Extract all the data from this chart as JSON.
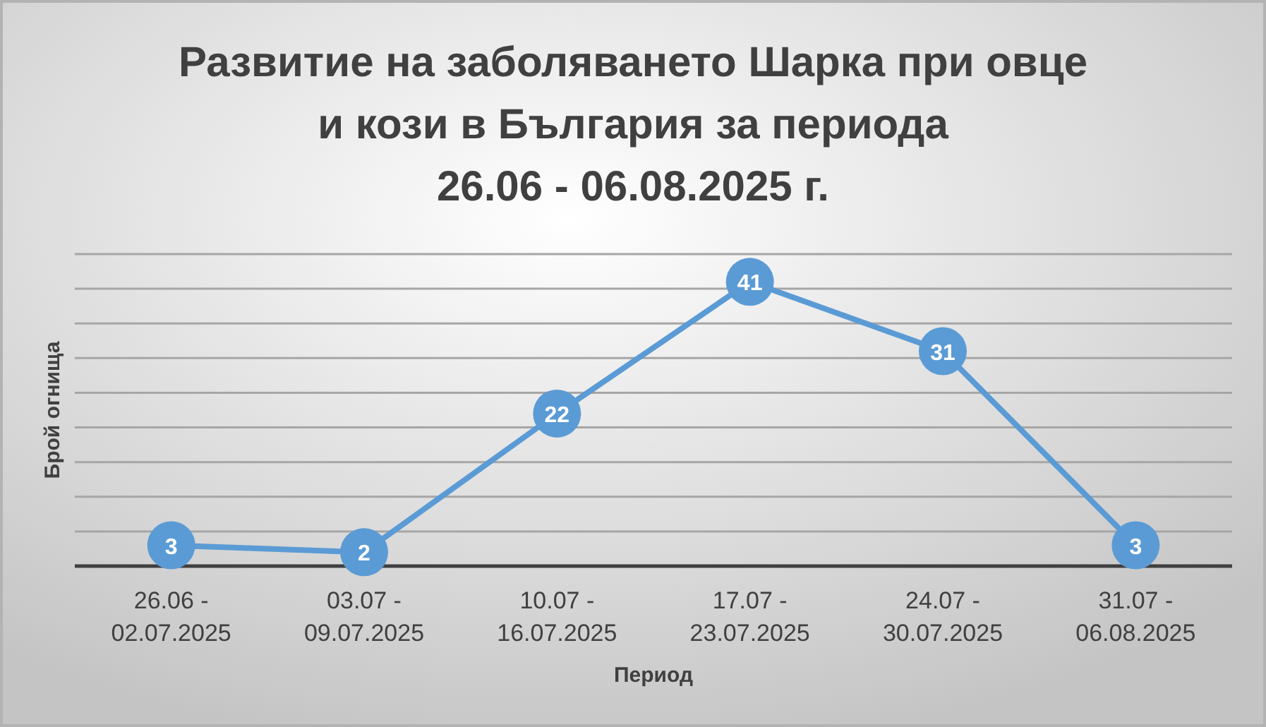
{
  "chart_data": {
    "type": "line",
    "title": "Развитие на заболяването Шарка при овце и кози в България за периода\n26.06 - 06.08.2025 г.",
    "xlabel": "Период",
    "ylabel": "Брой огнища",
    "categories": [
      "26.06 - 02.07.2025",
      "03.07 - 09.07.2025",
      "10.07 - 16.07.2025",
      "17.07 - 23.07.2025",
      "24.07 - 30.07.2025",
      "31.07 - 06.08.2025"
    ],
    "series": [
      {
        "color": "#5b9bd5",
        "values": [
          3,
          2,
          22,
          41,
          31,
          3
        ]
      }
    ],
    "ylim": [
      0,
      45
    ],
    "yticks": [
      {
        "value": 0,
        "label": null
      },
      {
        "value": 5,
        "label": null
      },
      {
        "value": 10,
        "label": null
      },
      {
        "value": 15,
        "label": null
      },
      {
        "value": 20,
        "label": null
      },
      {
        "value": 25,
        "label": null
      },
      {
        "value": 30,
        "label": null
      },
      {
        "value": 35,
        "label": null
      },
      {
        "value": 40,
        "label": null
      },
      {
        "value": 45,
        "label": null
      }
    ],
    "tick_labels": "x",
    "grid": "y",
    "marker": "circle",
    "line_style": "solid",
    "data_labels": true
  }
}
